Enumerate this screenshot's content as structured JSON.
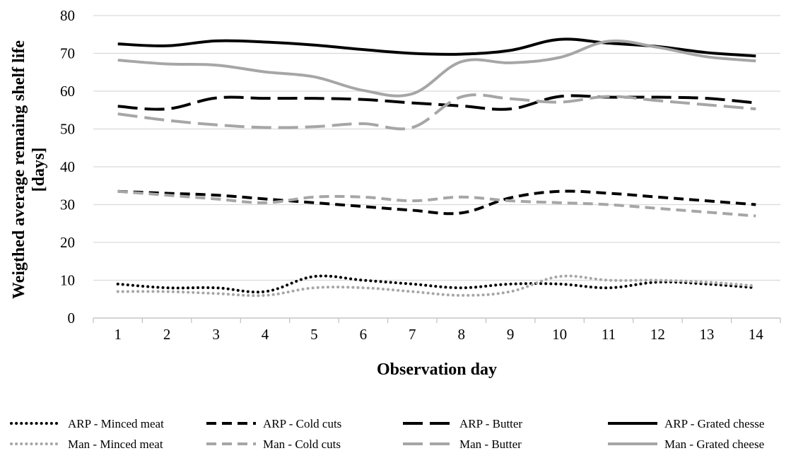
{
  "chart_data": {
    "type": "line",
    "title": "",
    "xlabel": "Observation day",
    "ylabel": "Weigthed average remaing shelf life\n[days]",
    "ylim": [
      0,
      80
    ],
    "yticks": [
      0,
      10,
      20,
      30,
      40,
      50,
      60,
      70,
      80
    ],
    "categories": [
      "1",
      "2",
      "3",
      "4",
      "5",
      "6",
      "7",
      "8",
      "9",
      "10",
      "11",
      "12",
      "13",
      "14"
    ],
    "grid": "horizontal",
    "legend_position": "bottom",
    "series": [
      {
        "name": "ARP - Minced meat",
        "color": "#000000",
        "style": "dotted",
        "values": [
          9,
          8,
          8,
          7,
          11,
          10,
          9,
          8,
          9,
          9,
          8,
          9.5,
          9,
          8
        ]
      },
      {
        "name": "Man - Minced meat",
        "color": "#a6a6a6",
        "style": "dotted",
        "values": [
          7,
          7,
          6.5,
          6,
          8,
          8,
          7,
          6,
          7,
          11,
          10,
          10,
          9.5,
          8.5
        ]
      },
      {
        "name": "ARP - Cold cuts",
        "color": "#000000",
        "style": "dashed",
        "values": [
          33.5,
          33,
          32.5,
          31.5,
          30.5,
          29.5,
          28.5,
          27.8,
          31.8,
          33.5,
          33,
          32,
          31,
          30
        ]
      },
      {
        "name": "Man - Cold cuts",
        "color": "#a6a6a6",
        "style": "dashed",
        "values": [
          33.5,
          32.5,
          31.5,
          30.5,
          32,
          32,
          31,
          32,
          31,
          30.5,
          30,
          29,
          28,
          27
        ]
      },
      {
        "name": "ARP - Butter",
        "color": "#000000",
        "style": "longdash",
        "values": [
          56,
          55.3,
          58.2,
          58.1,
          58.1,
          57.8,
          56.9,
          56.1,
          55.3,
          58.6,
          58.4,
          58.4,
          58.1,
          56.9
        ]
      },
      {
        "name": "Man - Butter",
        "color": "#a6a6a6",
        "style": "longdash",
        "values": [
          54,
          52.3,
          51.1,
          50.4,
          50.6,
          51.4,
          50.4,
          58.5,
          58,
          57.1,
          58.6,
          57.5,
          56.4,
          55.3
        ]
      },
      {
        "name": "ARP - Grated chesse",
        "color": "#000000",
        "style": "solid",
        "values": [
          72.5,
          72,
          73.3,
          73,
          72.2,
          71,
          70,
          69.8,
          70.8,
          73.7,
          72.7,
          71.8,
          70.2,
          69.3
        ]
      },
      {
        "name": "Man - Grated cheese",
        "color": "#a6a6a6",
        "style": "solid",
        "values": [
          68.2,
          67.2,
          66.9,
          65.1,
          63.8,
          60.2,
          59.3,
          67.8,
          67.5,
          68.9,
          73.2,
          71.6,
          69.1,
          68
        ]
      }
    ]
  }
}
